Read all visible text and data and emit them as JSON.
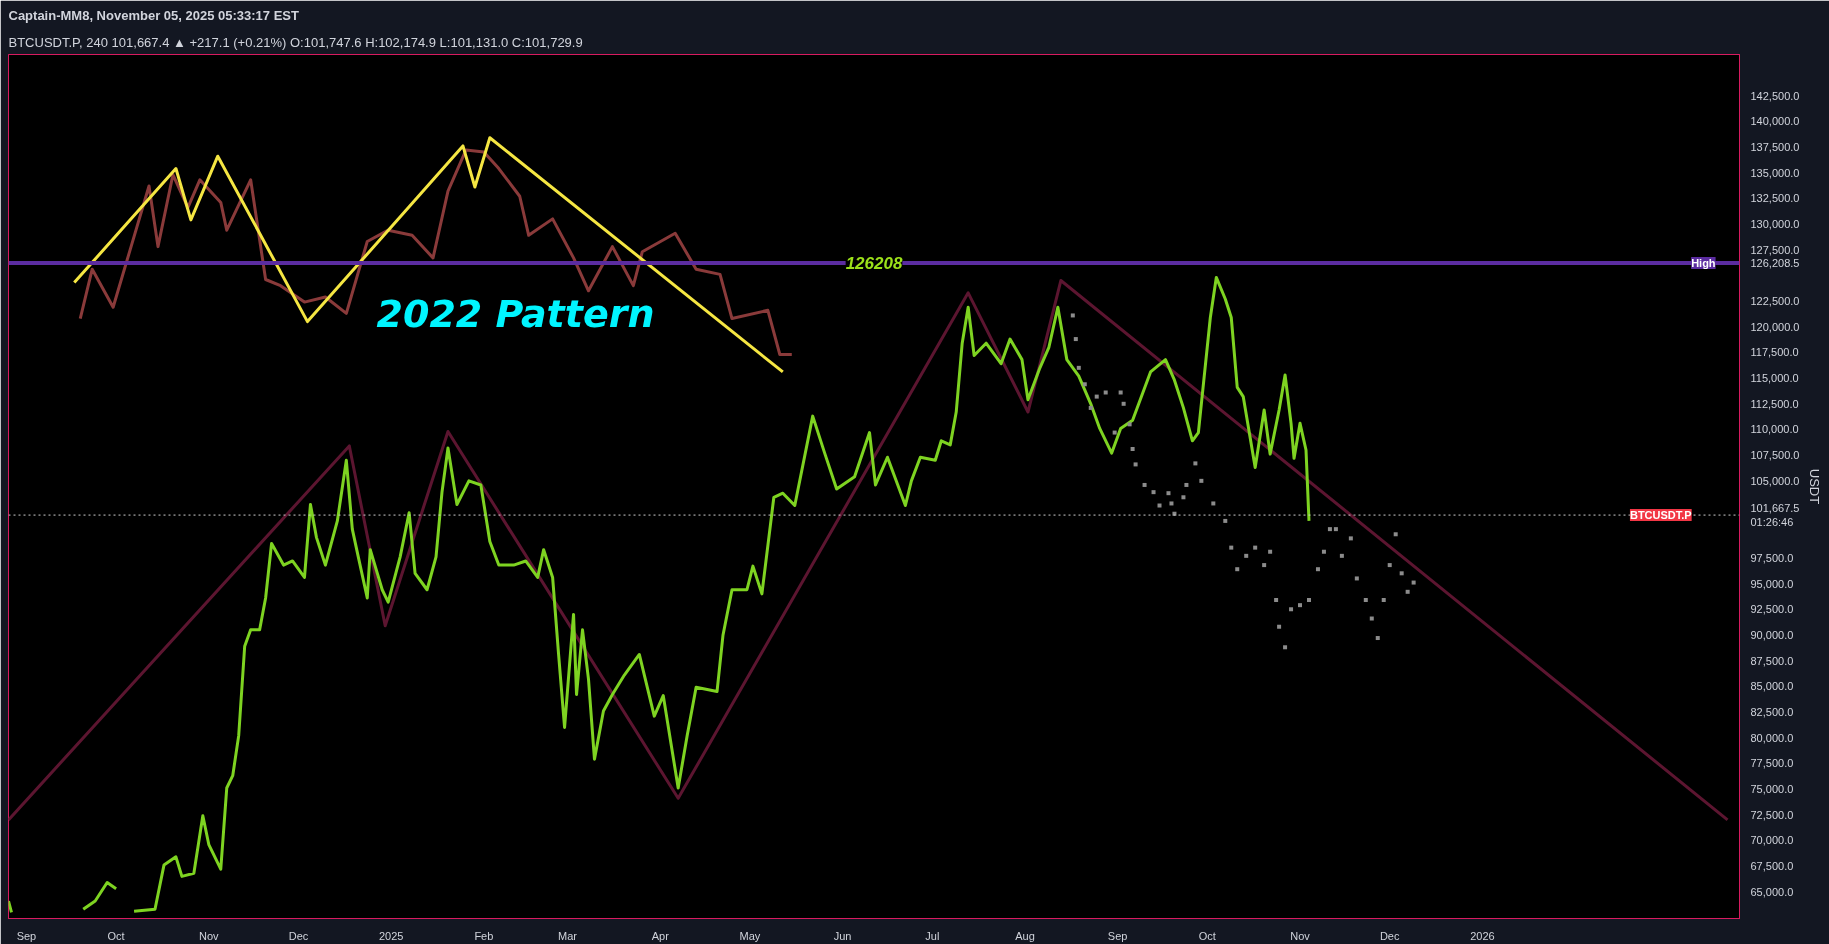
{
  "chart_data": {
    "type": "line",
    "title": "Captain-MM8, November 05, 2025 05:33:17 EST",
    "subtitle": "BTCUSDT.P, 240  101,667.4 ▲ +217.1 (+0.21%)  O:101,747.6  H:102,174.9  L:101,131.0  C:101,729.9",
    "ylabel": "USDT",
    "xlim": [
      "2024-08-26",
      "2026-03-28"
    ],
    "xticks": [
      {
        "value": "2024-09-01",
        "label": "Sep"
      },
      {
        "value": "2024-10-01",
        "label": "Oct"
      },
      {
        "value": "2024-11-01",
        "label": "Nov"
      },
      {
        "value": "2024-12-01",
        "label": "Dec"
      },
      {
        "value": "2025-01-01",
        "label": "2025"
      },
      {
        "value": "2025-02-01",
        "label": "Feb"
      },
      {
        "value": "2025-03-01",
        "label": "Mar"
      },
      {
        "value": "2025-04-01",
        "label": "Apr"
      },
      {
        "value": "2025-05-01",
        "label": "May"
      },
      {
        "value": "2025-06-01",
        "label": "Jun"
      },
      {
        "value": "2025-07-01",
        "label": "Jul"
      },
      {
        "value": "2025-08-01",
        "label": "Aug"
      },
      {
        "value": "2025-09-01",
        "label": "Sep"
      },
      {
        "value": "2025-10-01",
        "label": "Oct"
      },
      {
        "value": "2025-11-01",
        "label": "Nov"
      },
      {
        "value": "2025-12-01",
        "label": "Dec"
      },
      {
        "value": "2026-01-01",
        "label": "2026"
      }
    ],
    "ylim": [
      62400,
      146500
    ],
    "yticks": [
      {
        "value": 65000,
        "label": "65,000.0"
      },
      {
        "value": 67500,
        "label": "67,500.0"
      },
      {
        "value": 70000,
        "label": "70,000.0"
      },
      {
        "value": 72500,
        "label": "72,500.0"
      },
      {
        "value": 75000,
        "label": "75,000.0"
      },
      {
        "value": 77500,
        "label": "77,500.0"
      },
      {
        "value": 80000,
        "label": "80,000.0"
      },
      {
        "value": 82500,
        "label": "82,500.0"
      },
      {
        "value": 85000,
        "label": "85,000.0"
      },
      {
        "value": 87500,
        "label": "87,500.0"
      },
      {
        "value": 90000,
        "label": "90,000.0"
      },
      {
        "value": 92500,
        "label": "92,500.0"
      },
      {
        "value": 95000,
        "label": "95,000.0"
      },
      {
        "value": 97500,
        "label": "97,500.0"
      },
      {
        "value": 101667.5,
        "label": "101,667.5\n01:26:46"
      },
      {
        "value": 105000,
        "label": "105,000.0"
      },
      {
        "value": 107500,
        "label": "107,500.0"
      },
      {
        "value": 110000,
        "label": "110,000.0"
      },
      {
        "value": 112500,
        "label": "112,500.0"
      },
      {
        "value": 115000,
        "label": "115,000.0"
      },
      {
        "value": 117500,
        "label": "117,500.0"
      },
      {
        "value": 120000,
        "label": "120,000.0"
      },
      {
        "value": 122500,
        "label": "122,500.0"
      },
      {
        "value": 126208.5,
        "label": "126,208.5"
      },
      {
        "value": 127500,
        "label": "127,500.0"
      },
      {
        "value": 130000,
        "label": "130,000.0"
      },
      {
        "value": 132500,
        "label": "132,500.0"
      },
      {
        "value": 135000,
        "label": "135,000.0"
      },
      {
        "value": 137500,
        "label": "137,500.0"
      },
      {
        "value": 140000,
        "label": "140,000.0"
      },
      {
        "value": 142500,
        "label": "142,500.0"
      }
    ],
    "grid": false,
    "series": [
      {
        "color": "#5c1530",
        "x": [
          "2024-08-26",
          "2024-12-18",
          "2024-12-30",
          "2025-01-20",
          "2025-04-07",
          "2025-07-13",
          "2025-08-02",
          "2025-08-13",
          "2026-03-24"
        ],
        "values": [
          72000,
          108400,
          90900,
          109800,
          74100,
          123300,
          111700,
          124500,
          72000
        ]
      },
      {
        "color": "#8a3a3a",
        "x": [
          "2024-09-19",
          "2024-09-23",
          "2024-09-30",
          "2024-10-06",
          "2024-10-12",
          "2024-10-15",
          "2024-10-20",
          "2024-10-25",
          "2024-10-29",
          "2024-11-05",
          "2024-11-07",
          "2024-11-15",
          "2024-11-20",
          "2024-11-25",
          "2024-12-03",
          "2024-12-10",
          "2024-12-17",
          "2024-12-24",
          "2024-12-31",
          "2025-01-08",
          "2025-01-15",
          "2025-01-20",
          "2025-01-26",
          "2025-02-01",
          "2025-02-06",
          "2025-02-13",
          "2025-02-16",
          "2025-02-24",
          "2025-03-03",
          "2025-03-08",
          "2025-03-16",
          "2025-03-23",
          "2025-03-26",
          "2025-04-06",
          "2025-04-13",
          "2025-04-21",
          "2025-04-25",
          "2025-05-07",
          "2025-05-11",
          "2025-05-15"
        ],
        "values": [
          120800,
          125600,
          121900,
          127800,
          133700,
          127800,
          134800,
          131600,
          134300,
          132100,
          129400,
          134300,
          124600,
          124000,
          122400,
          122900,
          121300,
          128300,
          129400,
          128900,
          126700,
          133200,
          137200,
          137000,
          135400,
          132700,
          128900,
          130500,
          126700,
          123500,
          127800,
          124000,
          127300,
          129100,
          125600,
          125100,
          120800,
          121600,
          117300,
          117300
        ]
      },
      {
        "color": "#f5e642",
        "x": [
          "2024-09-17",
          "2024-10-21",
          "2024-10-26",
          "2024-11-04",
          "2024-12-04",
          "2025-01-25",
          "2025-01-29",
          "2025-02-03",
          "2025-05-12"
        ],
        "values": [
          124300,
          135400,
          130400,
          136600,
          120500,
          137600,
          133600,
          138400,
          115600
        ]
      },
      {
        "type": "scatter",
        "color": "#8c8c8c",
        "marker": "square",
        "x": [
          "2025-08-17",
          "2025-08-18",
          "2025-08-19",
          "2025-08-21",
          "2025-08-23",
          "2025-08-25",
          "2025-08-28",
          "2025-08-31",
          "2025-09-02",
          "2025-09-03",
          "2025-09-05",
          "2025-09-06",
          "2025-09-07",
          "2025-09-10",
          "2025-09-13",
          "2025-09-15",
          "2025-09-18",
          "2025-09-19",
          "2025-09-20",
          "2025-09-23",
          "2025-09-24",
          "2025-09-27",
          "2025-09-29",
          "2025-10-03",
          "2025-10-07",
          "2025-10-09",
          "2025-10-11",
          "2025-10-14",
          "2025-10-17",
          "2025-10-20",
          "2025-10-22",
          "2025-10-24",
          "2025-10-25",
          "2025-10-27",
          "2025-10-29",
          "2025-11-01",
          "2025-11-04",
          "2025-11-07",
          "2025-11-09",
          "2025-11-11",
          "2025-11-13",
          "2025-11-15",
          "2025-11-18",
          "2025-11-20",
          "2025-11-23",
          "2025-11-25",
          "2025-11-27",
          "2025-11-29",
          "2025-12-01",
          "2025-12-03",
          "2025-12-05",
          "2025-12-07",
          "2025-12-09"
        ],
        "values": [
          121100,
          118800,
          116000,
          114400,
          112100,
          113200,
          113600,
          109700,
          113600,
          112500,
          110500,
          108100,
          106600,
          104600,
          103900,
          102600,
          103800,
          102800,
          101800,
          103400,
          104600,
          106700,
          105000,
          102800,
          101100,
          98500,
          96400,
          97700,
          98500,
          96800,
          98100,
          93400,
          90800,
          88800,
          92500,
          92900,
          93400,
          96400,
          98100,
          100300,
          100300,
          97700,
          99400,
          95500,
          93400,
          91600,
          89700,
          93400,
          96800,
          99800,
          96000,
          94200,
          95100
        ]
      },
      {
        "color": "#7ed321",
        "x": [
          "2024-08-26",
          "2024-08-27",
          "2024-09-13",
          "2024-09-20",
          "2024-09-24",
          "2024-09-28",
          "2024-10-01",
          "2024-10-04",
          "2024-10-07",
          "2024-10-14",
          "2024-10-17",
          "2024-10-21",
          "2024-10-23",
          "2024-10-27",
          "2024-10-30",
          "2024-11-01",
          "2024-11-05",
          "2024-11-07",
          "2024-11-09",
          "2024-11-11",
          "2024-11-13",
          "2024-11-15",
          "2024-11-18",
          "2024-11-20",
          "2024-11-22",
          "2024-11-26",
          "2024-11-29",
          "2024-12-03",
          "2024-12-05",
          "2024-12-07",
          "2024-12-10",
          "2024-12-14",
          "2024-12-17",
          "2024-12-19",
          "2024-12-21",
          "2024-12-24",
          "2024-12-25",
          "2024-12-29",
          "2024-12-31",
          "2025-01-04",
          "2025-01-07",
          "2025-01-09",
          "2025-01-13",
          "2025-01-16",
          "2025-01-18",
          "2025-01-20",
          "2025-01-23",
          "2025-01-27",
          "2025-01-31",
          "2025-02-03",
          "2025-02-06",
          "2025-02-11",
          "2025-02-15",
          "2025-02-19",
          "2025-02-21",
          "2025-02-24",
          "2025-02-26",
          "2025-02-28",
          "2025-03-03",
          "2025-03-04",
          "2025-03-06",
          "2025-03-08",
          "2025-03-10",
          "2025-03-13",
          "2025-03-16",
          "2025-03-20",
          "2025-03-25",
          "2025-03-30",
          "2025-04-02",
          "2025-04-07",
          "2025-04-10",
          "2025-04-13",
          "2025-04-20",
          "2025-04-22",
          "2025-04-25",
          "2025-04-30",
          "2025-05-02",
          "2025-05-05",
          "2025-05-09",
          "2025-05-12",
          "2025-05-16",
          "2025-05-22",
          "2025-05-26",
          "2025-05-30",
          "2025-06-05",
          "2025-06-10",
          "2025-06-12",
          "2025-06-16",
          "2025-06-22",
          "2025-06-24",
          "2025-06-27",
          "2025-07-02",
          "2025-07-04",
          "2025-07-07",
          "2025-07-09",
          "2025-07-11",
          "2025-07-13",
          "2025-07-15",
          "2025-07-19",
          "2025-07-24",
          "2025-07-27",
          "2025-07-31",
          "2025-08-02",
          "2025-08-06",
          "2025-08-09",
          "2025-08-12",
          "2025-08-15",
          "2025-08-19",
          "2025-08-23",
          "2025-08-26",
          "2025-08-30",
          "2025-09-02",
          "2025-09-06",
          "2025-09-12",
          "2025-09-17",
          "2025-09-20",
          "2025-09-23",
          "2025-09-26",
          "2025-09-28",
          "2025-10-02",
          "2025-10-04",
          "2025-10-07",
          "2025-10-09",
          "2025-10-11",
          "2025-10-13",
          "2025-10-17",
          "2025-10-20",
          "2025-10-22",
          "2025-10-25",
          "2025-10-27",
          "2025-10-29",
          "2025-10-30",
          "2025-11-01",
          "2025-11-03",
          "2025-11-04"
        ],
        "values": [
          64100,
          63000,
          null,
          63300,
          64100,
          65900,
          65300,
          null,
          63100,
          63300,
          67600,
          68400,
          66500,
          66800,
          72400,
          69600,
          67200,
          75100,
          76300,
          80200,
          88900,
          90500,
          90500,
          93600,
          98900,
          96800,
          97200,
          95600,
          102700,
          99500,
          96800,
          101100,
          107000,
          100300,
          97600,
          93600,
          98300,
          94400,
          93200,
          97600,
          101900,
          96000,
          94400,
          97600,
          103900,
          108200,
          102700,
          105000,
          104600,
          99100,
          96800,
          96800,
          97200,
          95600,
          98300,
          95600,
          88100,
          81000,
          92000,
          84200,
          90500,
          85700,
          77900,
          82600,
          84200,
          86100,
          88100,
          82100,
          84100,
          75100,
          80200,
          84900,
          84500,
          90000,
          94400,
          94400,
          96700,
          94000,
          103400,
          103800,
          102600,
          111300,
          107700,
          104200,
          105400,
          109700,
          104600,
          107300,
          102600,
          105000,
          107300,
          107000,
          108900,
          108500,
          111700,
          118400,
          121900,
          117200,
          118400,
          116400,
          118800,
          116800,
          112900,
          116000,
          118000,
          121900,
          116800,
          115200,
          112500,
          110100,
          107700,
          110100,
          110900,
          115600,
          116800,
          114800,
          112100,
          108900,
          109700,
          120900,
          124800,
          122700,
          120900,
          114100,
          113200,
          106300,
          111900,
          107600,
          111900,
          115300,
          110600,
          107200,
          110600,
          108000,
          101100
        ]
      }
    ],
    "ref_lines": [
      {
        "axis": "y",
        "value": 126208.5,
        "label": "126208",
        "color": "#5b2ca0"
      },
      {
        "axis": "y",
        "value": 101667.5,
        "color": "#cccccc",
        "line_style": "dotted"
      }
    ],
    "annotations": [
      "2022 Pattern",
      {
        "text": "High",
        "x": "2026-03-20",
        "y": 126208.5
      },
      {
        "text": "BTCUSDT.P",
        "x": "2026-03-12",
        "y": 101667.5
      }
    ]
  }
}
